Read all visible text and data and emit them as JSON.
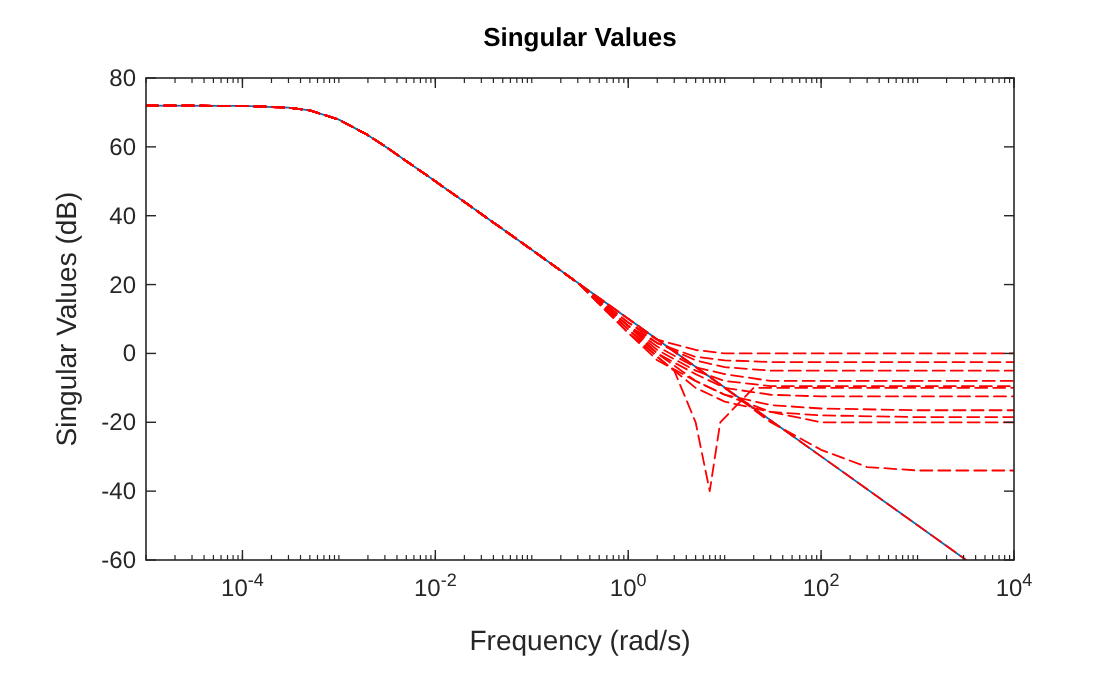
{
  "chart_data": {
    "type": "line",
    "title": "Singular Values",
    "xlabel": "Frequency (rad/s)",
    "ylabel": "Singular Values (dB)",
    "log": "x",
    "xlim": [
      1e-05,
      10000
    ],
    "ylim": [
      -60,
      80
    ],
    "xticks": [
      {
        "value": 0.0001,
        "label": "10$^{-4}$"
      },
      {
        "value": 0.01,
        "label": "10$^{-2}$"
      },
      {
        "value": 1,
        "label": "10$^{0}$"
      },
      {
        "value": 100,
        "label": "10$^{2}$"
      },
      {
        "value": 10000,
        "label": "10$^{4}$"
      }
    ],
    "yticks": [
      -60,
      -40,
      -20,
      0,
      20,
      40,
      60,
      80
    ],
    "grid": false,
    "marker": "none",
    "series": [
      {
        "color": "#0072bd",
        "line_style": "solid",
        "x": [
          1e-05,
          0.0001,
          0.0003,
          0.0005,
          0.001,
          0.002,
          0.003,
          0.01,
          0.1,
          0.3,
          1,
          10,
          100,
          1000,
          3184
        ],
        "values": [
          72,
          71.9,
          71.4,
          70.6,
          67.9,
          63.4,
          60.2,
          50,
          30.1,
          20.5,
          10.1,
          -9.9,
          -29.9,
          -49.9,
          -60
        ]
      },
      {
        "color": "#ff0000",
        "line_style": "dashed",
        "x": [
          1e-05,
          0.0001,
          0.0003,
          0.0005,
          0.001,
          0.002,
          0.003,
          0.01,
          0.1,
          0.3,
          1,
          10,
          100,
          1000,
          3184
        ],
        "values": [
          72,
          71.9,
          71.4,
          70.6,
          67.9,
          63.4,
          60.2,
          50,
          30.1,
          20.5,
          10.1,
          -9.9,
          -29.9,
          -49.9,
          -60
        ]
      },
      {
        "color": "#ff0000",
        "line_style": "dashed",
        "x": [
          1e-05,
          0.0001,
          0.0003,
          0.0005,
          0.001,
          0.002,
          0.003,
          0.01,
          0.1,
          0.3,
          1,
          2,
          5,
          10,
          30,
          100,
          1000,
          10000
        ],
        "values": [
          72,
          71.9,
          71.4,
          70.6,
          67.9,
          63.4,
          60.2,
          50,
          30.1,
          20.5,
          9,
          4,
          1,
          0,
          0,
          0,
          0,
          0
        ]
      },
      {
        "color": "#ff0000",
        "line_style": "dashed",
        "x": [
          1e-05,
          0.0001,
          0.0003,
          0.0005,
          0.001,
          0.002,
          0.003,
          0.01,
          0.1,
          0.3,
          1,
          2,
          5,
          10,
          30,
          100,
          1000,
          10000
        ],
        "values": [
          72,
          71.9,
          71.4,
          70.6,
          67.9,
          63.4,
          60.2,
          50,
          30.1,
          20.5,
          8,
          3,
          -1,
          -2,
          -2.5,
          -2.5,
          -2.5,
          -2.5
        ]
      },
      {
        "color": "#ff0000",
        "line_style": "dashed",
        "x": [
          1e-05,
          0.0001,
          0.0003,
          0.0005,
          0.001,
          0.002,
          0.003,
          0.01,
          0.1,
          0.3,
          1,
          2,
          5,
          10,
          30,
          100,
          1000,
          10000
        ],
        "values": [
          72,
          71.9,
          71.4,
          70.6,
          67.9,
          63.4,
          60.2,
          50,
          30.1,
          20.5,
          9,
          3,
          -2,
          -4,
          -5,
          -5,
          -5,
          -5
        ]
      },
      {
        "color": "#ff0000",
        "line_style": "dashed",
        "x": [
          1e-05,
          0.0001,
          0.0003,
          0.0005,
          0.001,
          0.002,
          0.003,
          0.01,
          0.1,
          0.3,
          1,
          2,
          5,
          10,
          30,
          100,
          1000,
          10000
        ],
        "values": [
          72,
          71.9,
          71.4,
          70.6,
          67.9,
          63.4,
          60.2,
          50,
          30.1,
          20.5,
          8,
          2,
          -4,
          -6,
          -8,
          -8,
          -8,
          -8
        ]
      },
      {
        "color": "#ff0000",
        "line_style": "dashed",
        "x": [
          1e-05,
          0.0001,
          0.0003,
          0.0005,
          0.001,
          0.002,
          0.003,
          0.01,
          0.1,
          0.3,
          1,
          2,
          5,
          10,
          30,
          100,
          1000,
          10000
        ],
        "values": [
          72,
          71.9,
          71.4,
          70.6,
          67.9,
          63.4,
          60.2,
          50,
          30.1,
          20.5,
          8,
          1,
          -5,
          -8,
          -9.5,
          -9.5,
          -9.5,
          -9.5
        ]
      },
      {
        "color": "#ff0000",
        "line_style": "dashed",
        "x": [
          1e-05,
          0.0001,
          0.0003,
          0.0005,
          0.001,
          0.002,
          0.003,
          0.01,
          0.1,
          0.3,
          1,
          2,
          5,
          10,
          30,
          100,
          1000,
          10000
        ],
        "values": [
          72,
          71.9,
          71.4,
          70.6,
          67.9,
          63.4,
          60.2,
          50,
          30.1,
          20.5,
          7,
          0,
          -6,
          -10,
          -12,
          -12.5,
          -12.5,
          -12.5
        ]
      },
      {
        "color": "#ff0000",
        "line_style": "dashed",
        "x": [
          1e-05,
          0.0001,
          0.0003,
          0.0005,
          0.001,
          0.002,
          0.003,
          0.01,
          0.1,
          0.3,
          1,
          2,
          5,
          10,
          30,
          100,
          1000,
          10000
        ],
        "values": [
          72,
          71.9,
          71.4,
          70.6,
          67.9,
          63.4,
          60.2,
          50,
          30.1,
          20.5,
          8,
          0,
          -8,
          -12,
          -15,
          -16,
          -16.5,
          -16.5
        ]
      },
      {
        "color": "#ff0000",
        "line_style": "dashed",
        "x": [
          1e-05,
          0.0001,
          0.0003,
          0.0005,
          0.001,
          0.002,
          0.003,
          0.01,
          0.1,
          0.3,
          1,
          2,
          5,
          10,
          30,
          100,
          1000,
          10000
        ],
        "values": [
          72,
          71.9,
          71.4,
          70.6,
          67.9,
          63.4,
          60.2,
          50,
          30.1,
          20.5,
          7,
          -1,
          -10,
          -14,
          -17,
          -18,
          -18.5,
          -18.5
        ]
      },
      {
        "color": "#ff0000",
        "line_style": "dashed",
        "x": [
          1e-05,
          0.0001,
          0.0003,
          0.0005,
          0.001,
          0.002,
          0.003,
          0.01,
          0.1,
          0.3,
          1,
          2,
          5,
          10,
          30,
          100,
          1000,
          10000
        ],
        "values": [
          72,
          71.9,
          71.4,
          70.6,
          67.9,
          63.4,
          60.2,
          50,
          30.1,
          20.5,
          6,
          -2,
          -8,
          -12,
          -17,
          -20,
          -20,
          -20
        ]
      },
      {
        "color": "#ff0000",
        "line_style": "dashed",
        "x": [
          1e-05,
          0.0001,
          0.0003,
          0.0005,
          0.001,
          0.002,
          0.003,
          0.01,
          0.1,
          0.3,
          1,
          3,
          5,
          7,
          9,
          20,
          100,
          1000,
          10000
        ],
        "values": [
          72,
          71.9,
          71.4,
          70.6,
          67.9,
          63.4,
          60.2,
          50,
          30.1,
          20.5,
          6,
          -5,
          -20,
          -40,
          -20,
          -10,
          -10,
          -10,
          -10
        ]
      },
      {
        "color": "#ff0000",
        "line_style": "dashed",
        "x": [
          1e-05,
          0.0001,
          0.0003,
          0.0005,
          0.001,
          0.002,
          0.003,
          0.01,
          0.1,
          0.3,
          1,
          10,
          30,
          100,
          300,
          1000,
          10000
        ],
        "values": [
          72,
          71.9,
          71.4,
          70.6,
          67.9,
          63.4,
          60.2,
          50,
          30.1,
          20.5,
          10.1,
          -10,
          -20,
          -28,
          -33,
          -34,
          -34
        ]
      }
    ]
  }
}
